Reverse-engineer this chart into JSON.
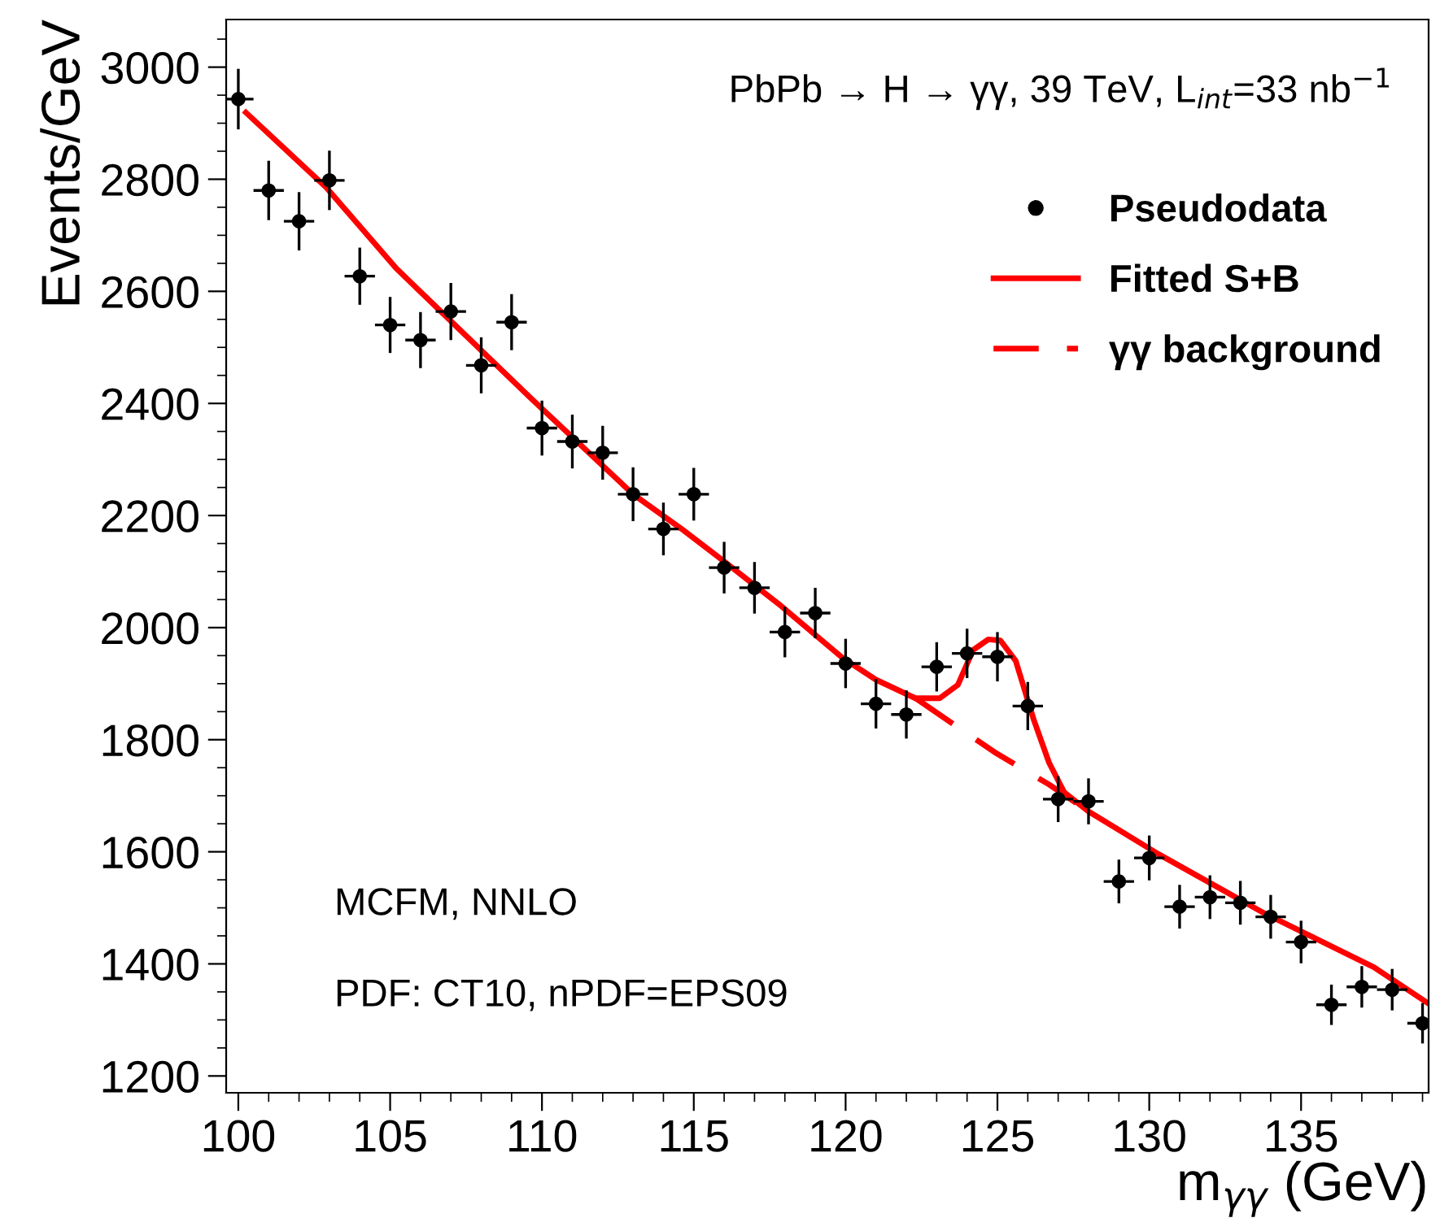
{
  "chart_data": {
    "type": "scatter",
    "title": "PbPb → H → γγ, 39 TeV, L$_{int}$=33 nb$^{−1}$",
    "xlabel": "m$_{γγ}$ (GeV)",
    "ylabel": "Events/GeV",
    "annotations": [
      "MCFM, NNLO",
      "PDF: CT10, nPDF=EPS09"
    ],
    "xlim": [
      99.6,
      139.2
    ],
    "ylim": [
      1170,
      3085
    ],
    "xticks": [
      100,
      105,
      110,
      115,
      120,
      125,
      130,
      135
    ],
    "yticks": [
      1200,
      1400,
      1600,
      1800,
      2000,
      2200,
      2400,
      2600,
      2800,
      3000
    ],
    "grid": false,
    "legend": "top right",
    "series": [
      {
        "name": "Pseudodata",
        "color": "#000000",
        "marker": "circle",
        "x": [
          100,
          101,
          102,
          103,
          104,
          105,
          106,
          107,
          108,
          109,
          110,
          111,
          112,
          113,
          114,
          115,
          116,
          117,
          118,
          119,
          120,
          121,
          122,
          123,
          124,
          125,
          126,
          127,
          128,
          129,
          130,
          131,
          132,
          133,
          134,
          135,
          136,
          137,
          138,
          139
        ],
        "values": [
          2943,
          2780,
          2725,
          2798,
          2627,
          2540,
          2513,
          2564,
          2468,
          2545,
          2356,
          2332,
          2312,
          2238,
          2176,
          2238,
          2107,
          2071,
          1992,
          2026,
          1936,
          1864,
          1845,
          1930,
          1954,
          1948,
          1860,
          1694,
          1690,
          1547,
          1589,
          1502,
          1519,
          1509,
          1484,
          1439,
          1327,
          1359,
          1354,
          1294
        ],
        "errors": [
          54,
          53,
          52,
          53,
          51,
          50,
          50,
          51,
          50,
          50,
          49,
          48,
          48,
          48,
          47,
          47,
          46,
          46,
          45,
          45,
          44,
          44,
          43,
          44,
          44,
          44,
          43,
          41,
          41,
          39,
          40,
          39,
          39,
          39,
          39,
          38,
          36,
          37,
          37,
          36
        ],
        "xerrors": [
          0.5,
          0.5,
          0.5,
          0.5,
          0.5,
          0.5,
          0.5,
          0.5,
          0.5,
          0.5,
          0.5,
          0.5,
          0.5,
          0.5,
          0.5,
          0.5,
          0.5,
          0.5,
          0.5,
          0.5,
          0.5,
          0.5,
          0.5,
          0.5,
          0.5,
          0.5,
          0.5,
          0.5,
          0.5,
          0.5,
          0.5,
          0.5,
          0.5,
          0.5,
          0.5,
          0.5,
          0.5,
          0.5,
          0.5,
          0.5
        ]
      },
      {
        "name": "Fitted S+B",
        "type": "line",
        "color": "#ff0000",
        "line_style": "solid",
        "x": [
          100.25,
          102.9,
          105.2,
          109.6,
          113,
          114.6,
          116,
          117.8,
          119.9,
          121,
          122.3,
          123.1,
          123.7,
          124.2,
          124.7,
          125.1,
          125.6,
          126.2,
          126.7,
          127.2,
          128,
          130.3,
          133.8,
          137.4,
          139.2
        ],
        "values": [
          2919,
          2785,
          2641,
          2411,
          2238,
          2176,
          2118,
          2042,
          1946,
          1907,
          1874,
          1874,
          1898,
          1960,
          1979,
          1977,
          1941,
          1835,
          1759,
          1706,
          1672,
          1596,
          1490,
          1394,
          1329
        ]
      },
      {
        "name": "γγ background",
        "type": "line",
        "color": "#ff0000",
        "line_style": "dashed",
        "x": [
          122.3,
          124.9,
          126.7,
          128
        ],
        "values": [
          1874,
          1778,
          1720,
          1672
        ]
      }
    ]
  }
}
